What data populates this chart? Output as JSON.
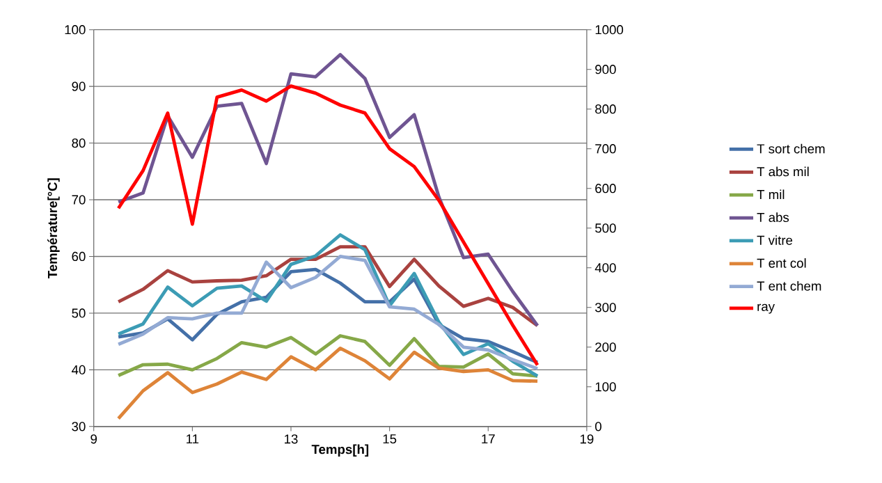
{
  "chart_data": {
    "type": "line",
    "xlabel": "Temps[h]",
    "ylabel": "Température[°C]",
    "x": [
      9.5,
      10,
      10.5,
      11,
      11.5,
      12,
      12.5,
      13,
      13.5,
      14,
      14.5,
      15,
      15.5,
      16,
      16.5,
      17,
      17.5,
      18
    ],
    "series": [
      {
        "name": "T sort chem",
        "color": "#4470a8",
        "values": [
          45.8,
          46.5,
          49,
          45.3,
          49.8,
          52,
          52.8,
          57.3,
          57.7,
          55.3,
          52,
          52,
          56,
          48,
          45.5,
          45,
          43.2,
          41.3
        ]
      },
      {
        "name": "T abs mil",
        "color": "#a9423f",
        "values": [
          52,
          54.2,
          57.5,
          55.5,
          55.7,
          55.8,
          56.6,
          59.5,
          59.5,
          61.7,
          61.7,
          54.7,
          59.5,
          54.8,
          51.2,
          52.6,
          51,
          47.8
        ]
      },
      {
        "name": "T mil",
        "color": "#86a848",
        "values": [
          39,
          40.9,
          41,
          40,
          42,
          44.8,
          44,
          45.7,
          42.8,
          46,
          45,
          40.8,
          45.5,
          40.6,
          40.5,
          42.8,
          39.3,
          38.9
        ]
      },
      {
        "name": "T abs",
        "color": "#6f5592",
        "values": [
          69.6,
          71.2,
          84.8,
          77.5,
          86.5,
          87,
          76.4,
          92.2,
          91.7,
          95.6,
          91.4,
          81,
          85,
          70.5,
          59.8,
          60.4,
          53.8,
          47.8
        ]
      },
      {
        "name": "T vitre",
        "color": "#3c9cb5",
        "values": [
          46.3,
          48.1,
          54.6,
          51.3,
          54.4,
          54.8,
          52.1,
          58.6,
          60.1,
          63.8,
          61.2,
          51.3,
          57,
          48.4,
          42.7,
          44.6,
          41.5,
          38.9
        ]
      },
      {
        "name": "T ent col",
        "color": "#de8438",
        "values": [
          31.4,
          36.3,
          39.5,
          36,
          37.5,
          39.6,
          38.3,
          42.3,
          40,
          43.8,
          41.6,
          38.4,
          43.1,
          40.3,
          39.7,
          40,
          38.1,
          38
        ]
      },
      {
        "name": "T ent chem",
        "color": "#93aad4",
        "values": [
          44.5,
          46.3,
          49.2,
          49,
          50,
          50,
          59,
          54.5,
          56.3,
          60,
          59.3,
          51.1,
          50.7,
          48,
          44,
          43.5,
          41.8,
          40.2
        ]
      },
      {
        "name": "ray",
        "color": "#ff0000",
        "axis": "y2",
        "values": [
          550,
          645,
          790,
          510,
          830,
          848,
          820,
          858,
          840,
          810,
          790,
          700,
          655,
          570,
          465,
          360,
          255,
          155
        ]
      }
    ],
    "xlim": [
      9,
      19
    ],
    "xticks": [
      9,
      11,
      13,
      15,
      17,
      19
    ],
    "ylim": [
      30,
      100
    ],
    "yticks": [
      30,
      40,
      50,
      60,
      70,
      80,
      90,
      100
    ],
    "y2lim": [
      0,
      1000
    ],
    "y2ticks": [
      0,
      100,
      200,
      300,
      400,
      500,
      600,
      700,
      800,
      900,
      1000
    ],
    "grid": "y",
    "legend": "right",
    "marker": "none",
    "line_style": "solid"
  }
}
